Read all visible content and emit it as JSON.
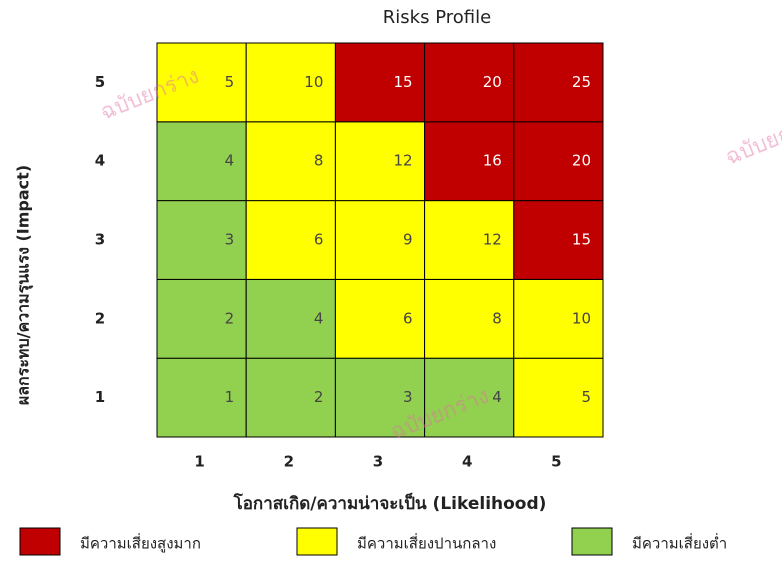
{
  "chart_data": {
    "type": "heatmap",
    "title": "Risks Profile",
    "x_label": "โอกาสเกิด/ความน่าจะเป็น  (Likelihood)",
    "y_label": "ผลกระทบ/ความรุนแรง (Impact)",
    "x_categories": [
      "1",
      "2",
      "3",
      "4",
      "5"
    ],
    "y_categories": [
      "1",
      "2",
      "3",
      "4",
      "5"
    ],
    "values": [
      [
        1,
        2,
        3,
        4,
        5
      ],
      [
        2,
        4,
        6,
        8,
        10
      ],
      [
        3,
        6,
        9,
        12,
        15
      ],
      [
        4,
        8,
        12,
        16,
        20
      ],
      [
        5,
        10,
        15,
        20,
        25
      ]
    ],
    "colors": [
      [
        "#92d050",
        "#92d050",
        "#92d050",
        "#92d050",
        "#ffff00"
      ],
      [
        "#92d050",
        "#92d050",
        "#ffff00",
        "#ffff00",
        "#ffff00"
      ],
      [
        "#92d050",
        "#ffff00",
        "#ffff00",
        "#ffff00",
        "#c00000"
      ],
      [
        "#92d050",
        "#ffff00",
        "#ffff00",
        "#c00000",
        "#c00000"
      ],
      [
        "#ffff00",
        "#ffff00",
        "#c00000",
        "#c00000",
        "#c00000"
      ]
    ],
    "legend": [
      {
        "name": "มีความเสี่ยงสูงมาก",
        "color": "#c00000"
      },
      {
        "name": "มีความเสี่ยงปานกลาง",
        "color": "#ffff00"
      },
      {
        "name": "มีความเสี่ยงต่ำ",
        "color": "#92d050"
      }
    ],
    "watermark": "ฉบับยกร่าง"
  }
}
